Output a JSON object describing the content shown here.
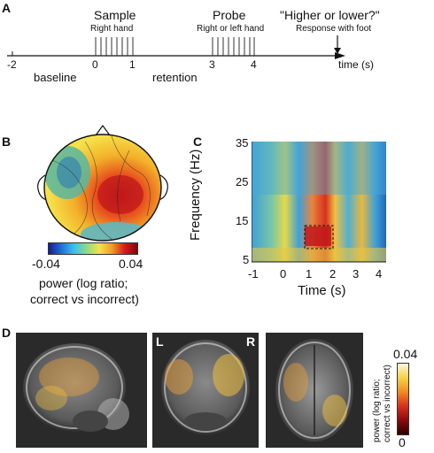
{
  "panel_a": {
    "letter": "A",
    "sample_title": "Sample",
    "sample_sub": "Right hand",
    "probe_title": "Probe",
    "probe_sub": "Right or left hand",
    "question": "\"Higher or lower?\"",
    "response": "Response with foot",
    "ticks": [
      "-2",
      "0",
      "1",
      "3",
      "4"
    ],
    "baseline": "baseline",
    "retention": "retention",
    "axis_label": "time (s)"
  },
  "panel_b": {
    "letter": "B",
    "cbar_min": "-0.04",
    "cbar_max": "0.04",
    "caption_line1": "power (log ratio;",
    "caption_line2": "correct vs incorrect)"
  },
  "panel_c": {
    "letter": "C",
    "ylabel": "Frequency (Hz)",
    "xlabel": "Time (s)",
    "yticks": [
      "35",
      "25",
      "15",
      "5"
    ],
    "xticks": [
      "-1",
      "0",
      "1",
      "2",
      "3",
      "4"
    ]
  },
  "panel_d": {
    "letter": "D",
    "left_marker": "L",
    "right_marker": "R",
    "cbar_max": "0.04",
    "cbar_min": "0",
    "cbar_label_line1": "power (log ratio;",
    "cbar_label_line2": "correct vs incorrect)"
  },
  "colors": {
    "hot": "#d7191c",
    "cool": "#2c7bb6",
    "bg_tf": "#4aa8d8"
  }
}
